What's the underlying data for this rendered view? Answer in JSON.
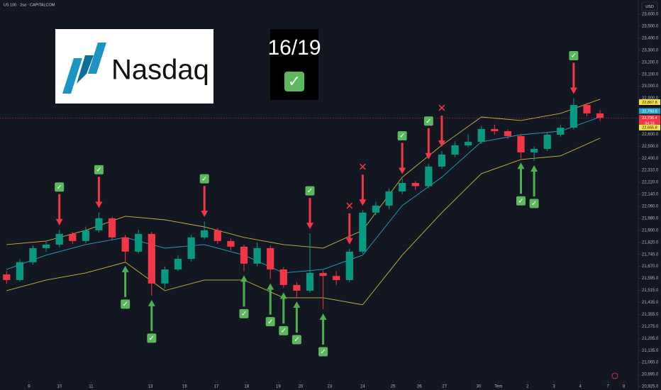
{
  "chart_data": {
    "type": "candlestick",
    "title": "US 100 · 2sa · CAPITALCOM",
    "currency": "USD",
    "grid": false,
    "up_color": "#089981",
    "down_color": "#f23645",
    "open": [
      21620,
      21584,
      21696,
      21784,
      21806,
      21876,
      21829,
      21900,
      21980,
      21853,
      21762,
      21876,
      21561,
      21651,
      21717,
      21853,
      21900,
      21829,
      21793,
      21687,
      21784,
      21651,
      21551,
      21513,
      21629,
      21610,
      21584,
      21762,
      22018,
      22065,
      22159,
      22216,
      22194,
      22338,
      22431,
      22508,
      22537,
      22644,
      22626,
      22585,
      22449,
      22478,
      22596,
      22655,
      22844,
      22774
    ],
    "high": [
      21640,
      21715,
      21800,
      21830,
      21905,
      21890,
      21925,
      22020,
      21990,
      21870,
      21905,
      21890,
      21670,
      21740,
      21870,
      21960,
      21915,
      21845,
      21805,
      21820,
      21800,
      21665,
      21570,
      21880,
      21645,
      21640,
      21780,
      22035,
      22090,
      22180,
      22250,
      22230,
      22360,
      22460,
      22540,
      22600,
      22670,
      22680,
      22640,
      22600,
      22500,
      22620,
      22680,
      22900,
      22860,
      22800
    ],
    "low": [
      21560,
      21575,
      21680,
      21760,
      21790,
      21810,
      21815,
      21885,
      21840,
      21700,
      21750,
      21480,
      21530,
      21640,
      21700,
      21840,
      21810,
      21770,
      21640,
      21670,
      21590,
      21530,
      21470,
      21500,
      21390,
      21550,
      21570,
      21750,
      22000,
      22040,
      22140,
      22170,
      22180,
      22320,
      22410,
      22490,
      22520,
      22600,
      22560,
      22400,
      22380,
      22460,
      22580,
      22640,
      22750,
      22710
    ],
    "close": [
      21584,
      21696,
      21784,
      21806,
      21876,
      21829,
      21900,
      21980,
      21853,
      21762,
      21876,
      21561,
      21651,
      21717,
      21853,
      21900,
      21829,
      21793,
      21687,
      21784,
      21651,
      21551,
      21513,
      21629,
      21610,
      21584,
      21762,
      22018,
      22065,
      22159,
      22216,
      22194,
      22338,
      22431,
      22508,
      22537,
      22644,
      22626,
      22585,
      22449,
      22478,
      22596,
      22655,
      22844,
      22774,
      22736.4
    ],
    "bands": {
      "upper_color": "#c8b63a",
      "middle_color": "#2aa3c8",
      "lower_color": "#c8b63a",
      "x": [
        0,
        3,
        6,
        9,
        12,
        15,
        18,
        21,
        24,
        27,
        30,
        33,
        36,
        39,
        42,
        45
      ],
      "upper": [
        21806,
        21829,
        21900,
        21994,
        21970,
        21923,
        21853,
        21806,
        21784,
        21900,
        22258,
        22508,
        22744,
        22715,
        22774,
        22892
      ],
      "middle": [
        21651,
        21740,
        21806,
        21853,
        21784,
        21806,
        21740,
        21629,
        21651,
        21740,
        22065,
        22258,
        22537,
        22596,
        22626,
        22744
      ],
      "lower": [
        21513,
        21584,
        21629,
        21696,
        21513,
        21584,
        21584,
        21466,
        21466,
        21419,
        21740,
        22018,
        22285,
        22391,
        22420,
        22567
      ]
    },
    "xlim": [
      -0.5,
      47.9
    ],
    "xticks": [
      {
        "value": 1.7,
        "label": "9"
      },
      {
        "value": 4.0,
        "label": "10"
      },
      {
        "value": 6.4,
        "label": "11"
      },
      {
        "value": 10.9,
        "label": "13"
      },
      {
        "value": 13.5,
        "label": "16"
      },
      {
        "value": 15.9,
        "label": "17"
      },
      {
        "value": 18.2,
        "label": "18"
      },
      {
        "value": 20.6,
        "label": "19"
      },
      {
        "value": 22.3,
        "label": "20"
      },
      {
        "value": 24.5,
        "label": "23"
      },
      {
        "value": 27.0,
        "label": "24"
      },
      {
        "value": 29.3,
        "label": "25"
      },
      {
        "value": 31.3,
        "label": "26"
      },
      {
        "value": 33.2,
        "label": "27"
      },
      {
        "value": 35.8,
        "label": "30"
      },
      {
        "value": 37.3,
        "label": "Tem"
      },
      {
        "value": 39.5,
        "label": "2"
      },
      {
        "value": 41.5,
        "label": "3"
      },
      {
        "value": 43.5,
        "label": "4"
      },
      {
        "value": 45.6,
        "label": "7"
      },
      {
        "value": 46.8,
        "label": "8"
      }
    ],
    "ylim": [
      20925,
      23600
    ],
    "yticks": [
      {
        "value": 23600,
        "label": "23,600.0"
      },
      {
        "value": 23500,
        "label": "23,500.0"
      },
      {
        "value": 23400,
        "label": "23,400.0"
      },
      {
        "value": 23300,
        "label": "23,300.0"
      },
      {
        "value": 23200,
        "label": "23,200.0"
      },
      {
        "value": 23100,
        "label": "23,100.0"
      },
      {
        "value": 23000,
        "label": "23,000.0"
      },
      {
        "value": 22900,
        "label": "22,900.0"
      },
      {
        "value": 22800,
        "label": "22,800.0"
      },
      {
        "value": 22700,
        "label": "22,700.0"
      },
      {
        "value": 22600,
        "label": "22,600.0"
      },
      {
        "value": 22500,
        "label": "22,500.0"
      },
      {
        "value": 22400,
        "label": "22,400.0"
      },
      {
        "value": 22310,
        "label": "22,310.0"
      },
      {
        "value": 22220,
        "label": "22,220.0"
      },
      {
        "value": 22140,
        "label": "22,140.0"
      },
      {
        "value": 22060,
        "label": "22,060.0"
      },
      {
        "value": 21980,
        "label": "21,980.0"
      },
      {
        "value": 21900,
        "label": "21,900.0"
      },
      {
        "value": 21820,
        "label": "21,820.0"
      },
      {
        "value": 21745,
        "label": "21,745.0"
      },
      {
        "value": 21670,
        "label": "21,670.0"
      },
      {
        "value": 21595,
        "label": "21,595.0"
      },
      {
        "value": 21515,
        "label": "21,515.0"
      },
      {
        "value": 21435,
        "label": "21,435.0"
      },
      {
        "value": 21355,
        "label": "21,355.0"
      },
      {
        "value": 21275,
        "label": "21,275.0"
      },
      {
        "value": 21205,
        "label": "21,205.0"
      },
      {
        "value": 21135,
        "label": "21,135.0"
      },
      {
        "value": 21065,
        "label": "21,065.0"
      },
      {
        "value": 20995,
        "label": "20,995.0"
      },
      {
        "value": 20925,
        "label": "20,925.0"
      }
    ],
    "price_labels": [
      {
        "value": 22867.8,
        "label": "22,867.8",
        "color": "#f5e04a"
      },
      {
        "value": 22793.5,
        "label": "22,793.5",
        "color": "#2aa3c8"
      },
      {
        "value": 22736.4,
        "label": "22,736.4",
        "color": "#f23645",
        "countdown": "04:16"
      },
      {
        "value": 22655.8,
        "label": "22,655.8",
        "color": "#f5e04a"
      }
    ],
    "signals": [
      {
        "at": 4,
        "dir": "down",
        "mark": "✓"
      },
      {
        "at": 7,
        "dir": "down",
        "mark": "✓"
      },
      {
        "at": 9,
        "dir": "up",
        "mark": "✓"
      },
      {
        "at": 11,
        "dir": "up",
        "mark": "✓"
      },
      {
        "at": 15,
        "dir": "down",
        "mark": "✓"
      },
      {
        "at": 18,
        "dir": "up",
        "mark": "✓"
      },
      {
        "at": 20,
        "dir": "up",
        "mark": "✓"
      },
      {
        "at": 21,
        "dir": "up",
        "mark": "✓"
      },
      {
        "at": 22,
        "dir": "up",
        "mark": "✓"
      },
      {
        "at": 23,
        "dir": "down",
        "mark": "✓"
      },
      {
        "at": 24,
        "dir": "up",
        "mark": "✓"
      },
      {
        "at": 26,
        "dir": "down",
        "mark": "✕"
      },
      {
        "at": 27,
        "dir": "down",
        "mark": "✕"
      },
      {
        "at": 30,
        "dir": "down",
        "mark": "✓"
      },
      {
        "at": 32,
        "dir": "down",
        "mark": "✓"
      },
      {
        "at": 33,
        "dir": "down",
        "mark": "✕"
      },
      {
        "at": 39,
        "dir": "up",
        "mark": "✓"
      },
      {
        "at": 40,
        "dir": "up",
        "mark": "✓"
      },
      {
        "at": 43,
        "dir": "down",
        "mark": "✓"
      }
    ],
    "logo_text": "Nasdaq",
    "score": "16/19",
    "score_mark": "✓"
  }
}
